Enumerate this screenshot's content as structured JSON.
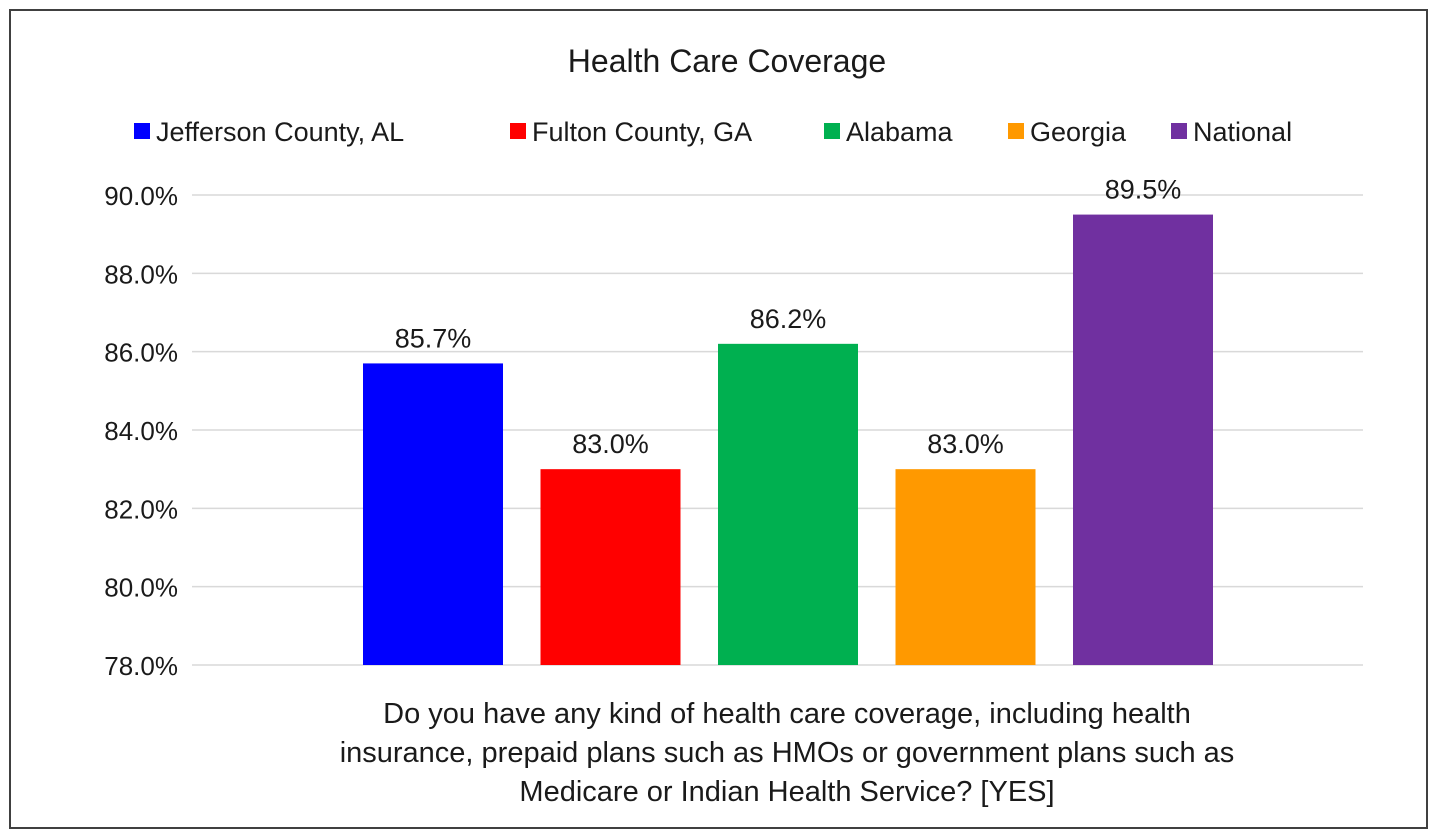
{
  "chart_data": {
    "type": "bar",
    "title": "Health Care Coverage",
    "categories": [
      "Jefferson County, AL",
      "Fulton County, GA",
      "Alabama",
      "Georgia",
      "National"
    ],
    "values": [
      85.7,
      83.0,
      86.2,
      83.0,
      89.5
    ],
    "value_labels": [
      "85.7%",
      "83.0%",
      "86.2%",
      "83.0%",
      "89.5%"
    ],
    "colors": [
      "#0000ff",
      "#ff0000",
      "#00b050",
      "#ff9900",
      "#7030a0"
    ],
    "ylim": [
      78,
      90
    ],
    "yticks": [
      "78.0%",
      "80.0%",
      "82.0%",
      "84.0%",
      "86.0%",
      "88.0%",
      "90.0%"
    ],
    "ytick_values": [
      78,
      80,
      82,
      84,
      86,
      88,
      90
    ],
    "xlabel_lines": [
      "Do you have any kind of health care coverage, including health",
      "insurance, prepaid plans such as HMOs or government plans such as",
      "Medicare or Indian Health Service? [YES]"
    ],
    "legend": {
      "position": "top",
      "entries": [
        "Jefferson County, AL",
        "Fulton County, GA",
        "Alabama",
        "Georgia",
        "National"
      ]
    },
    "grid": true
  }
}
